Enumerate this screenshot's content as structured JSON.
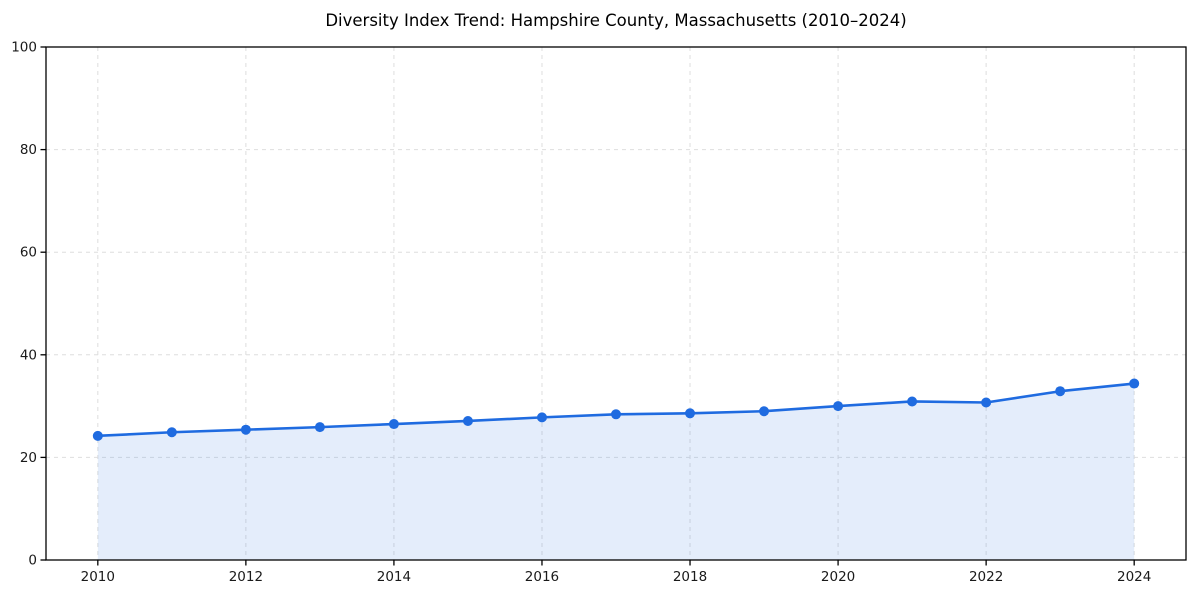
{
  "chart_data": {
    "type": "line",
    "title": "Diversity Index Trend: Hampshire County, Massachusetts (2010–2024)",
    "xlabel": "",
    "ylabel": "",
    "x": [
      2010,
      2011,
      2012,
      2013,
      2014,
      2015,
      2016,
      2017,
      2018,
      2019,
      2020,
      2021,
      2022,
      2023,
      2024
    ],
    "series": [
      {
        "name": "Diversity Index",
        "values": [
          24.2,
          24.9,
          25.4,
          25.9,
          26.5,
          27.1,
          27.8,
          28.4,
          28.6,
          29.0,
          30.0,
          30.9,
          30.7,
          32.9,
          34.4
        ]
      }
    ],
    "xlim": [
      2009.3,
      2024.7
    ],
    "ylim": [
      0,
      100
    ],
    "x_ticks": [
      2010,
      2012,
      2014,
      2016,
      2018,
      2020,
      2022,
      2024
    ],
    "y_ticks": [
      0,
      20,
      40,
      60,
      80,
      100
    ],
    "grid": true,
    "grid_style": "dashed",
    "legend": false,
    "marker": "circle",
    "area_fill": true,
    "colors": {
      "line": "#1f6be0",
      "fill_opacity": 0.12,
      "grid": "#dedede",
      "spine": "#000000",
      "text": "#1a1a1a",
      "background": "#ffffff"
    }
  }
}
